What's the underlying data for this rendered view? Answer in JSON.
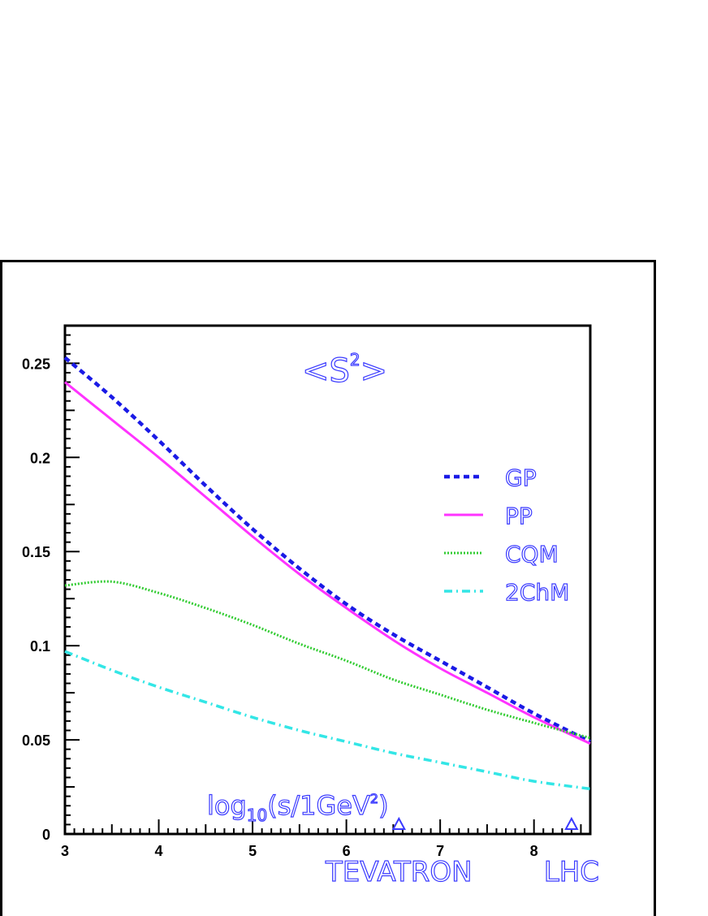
{
  "chart_data": {
    "type": "line",
    "title": "<S²>",
    "title_main": "<S",
    "title_sup": "2",
    "title_end": ">",
    "xlabel": "log10(s/1GeV2)",
    "xlabel_parts": {
      "pre": "log",
      "sub": "10",
      "mid": "(s/1GeV",
      "sup": "2",
      "post": ")"
    },
    "xlim": [
      3,
      8.6
    ],
    "ylim": [
      0,
      0.27
    ],
    "x_ticks": [
      "3",
      "4",
      "5",
      "6",
      "7",
      "8"
    ],
    "y_ticks": [
      "0",
      "0.05",
      "0.1",
      "0.15",
      "0.2",
      "0.25"
    ],
    "legend_position": "right",
    "grid": false,
    "markers": [
      {
        "label": "TEVATRON",
        "x": 6.56
      },
      {
        "label": "LHC",
        "x": 8.4
      }
    ],
    "x": [
      3.0,
      3.5,
      4.0,
      4.5,
      5.0,
      5.5,
      6.0,
      6.5,
      7.0,
      7.5,
      8.0,
      8.6
    ],
    "series": [
      {
        "name": "GP",
        "color": "#1a1ae6",
        "style": "dashed",
        "values": [
          0.253,
          0.232,
          0.209,
          0.185,
          0.162,
          0.141,
          0.122,
          0.106,
          0.092,
          0.078,
          0.064,
          0.049
        ]
      },
      {
        "name": "PP",
        "color": "#ff33ff",
        "style": "solid",
        "values": [
          0.24,
          0.22,
          0.2,
          0.179,
          0.158,
          0.138,
          0.12,
          0.103,
          0.088,
          0.075,
          0.062,
          0.048
        ]
      },
      {
        "name": "CQM",
        "color": "#33cc33",
        "style": "dotted",
        "values": [
          0.132,
          0.134,
          0.128,
          0.12,
          0.111,
          0.101,
          0.092,
          0.082,
          0.074,
          0.066,
          0.059,
          0.051
        ]
      },
      {
        "name": "2ChM",
        "color": "#33e6e6",
        "style": "dashdot",
        "values": [
          0.097,
          0.087,
          0.078,
          0.07,
          0.062,
          0.055,
          0.049,
          0.043,
          0.038,
          0.033,
          0.028,
          0.024
        ]
      }
    ]
  }
}
